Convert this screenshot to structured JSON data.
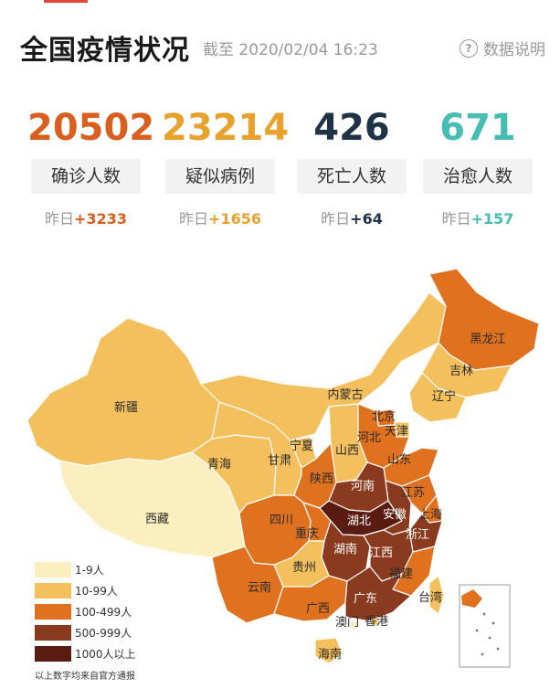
{
  "header": {
    "title": "全国疫情状况",
    "as_of": "截至 2020/02/04 16:23",
    "explain_label": "数据说明"
  },
  "stats": [
    {
      "value": "20502",
      "label": "确诊人数",
      "delta_prefix": "昨日",
      "delta": "+3233",
      "color": "#d95f1f"
    },
    {
      "value": "23214",
      "label": "疑似病例",
      "delta_prefix": "昨日",
      "delta": "+1656",
      "color": "#e8a22b"
    },
    {
      "value": "426",
      "label": "死亡人数",
      "delta_prefix": "昨日",
      "delta": "+64",
      "color": "#1f3347"
    },
    {
      "value": "671",
      "label": "治愈人数",
      "delta_prefix": "昨日",
      "delta": "+157",
      "color": "#45bdb3"
    }
  ],
  "map": {
    "colors": {
      "1-9": "#fbefbf",
      "10-99": "#f4c05e",
      "100-499": "#e0711f",
      "500-999": "#8a3a1f",
      "1000+": "#5a1c12",
      "border": "#ffffff",
      "label": "#2a2a2a"
    },
    "provinces": [
      {
        "name": "新疆",
        "level": "10-99"
      },
      {
        "name": "西藏",
        "level": "1-9"
      },
      {
        "name": "青海",
        "level": "10-99"
      },
      {
        "name": "甘肃",
        "level": "10-99"
      },
      {
        "name": "宁夏",
        "level": "10-99"
      },
      {
        "name": "内蒙古",
        "level": "10-99"
      },
      {
        "name": "黑龙江",
        "level": "100-499"
      },
      {
        "name": "吉林",
        "level": "10-99"
      },
      {
        "name": "辽宁",
        "level": "10-99"
      },
      {
        "name": "北京",
        "level": "100-499"
      },
      {
        "name": "天津",
        "level": "10-99"
      },
      {
        "name": "河北",
        "level": "100-499"
      },
      {
        "name": "山西",
        "level": "10-99"
      },
      {
        "name": "山东",
        "level": "100-499"
      },
      {
        "name": "陕西",
        "level": "100-499"
      },
      {
        "name": "河南",
        "level": "500-999"
      },
      {
        "name": "四川",
        "level": "100-499"
      },
      {
        "name": "重庆",
        "level": "100-499"
      },
      {
        "name": "湖北",
        "level": "1000+"
      },
      {
        "name": "安徽",
        "level": "500-999"
      },
      {
        "name": "江苏",
        "level": "100-499"
      },
      {
        "name": "上海",
        "level": "100-499"
      },
      {
        "name": "浙江",
        "level": "500-999"
      },
      {
        "name": "湖南",
        "level": "500-999"
      },
      {
        "name": "江西",
        "level": "500-999"
      },
      {
        "name": "福建",
        "level": "100-499"
      },
      {
        "name": "云南",
        "level": "100-499"
      },
      {
        "name": "贵州",
        "level": "10-99"
      },
      {
        "name": "广西",
        "level": "100-499"
      },
      {
        "name": "广东",
        "level": "500-999"
      },
      {
        "name": "香港",
        "level": "10-99"
      },
      {
        "name": "澳门",
        "level": "1-9"
      },
      {
        "name": "台湾",
        "level": "10-99"
      },
      {
        "name": "海南",
        "level": "10-99"
      }
    ]
  },
  "legend": [
    {
      "label": "1-9人",
      "level": "1-9"
    },
    {
      "label": "10-99人",
      "level": "10-99"
    },
    {
      "label": "100-499人",
      "level": "100-499"
    },
    {
      "label": "500-999人",
      "level": "500-999"
    },
    {
      "label": "1000人以上",
      "level": "1000+"
    }
  ],
  "source_note": "以上数字均来自官方通报"
}
